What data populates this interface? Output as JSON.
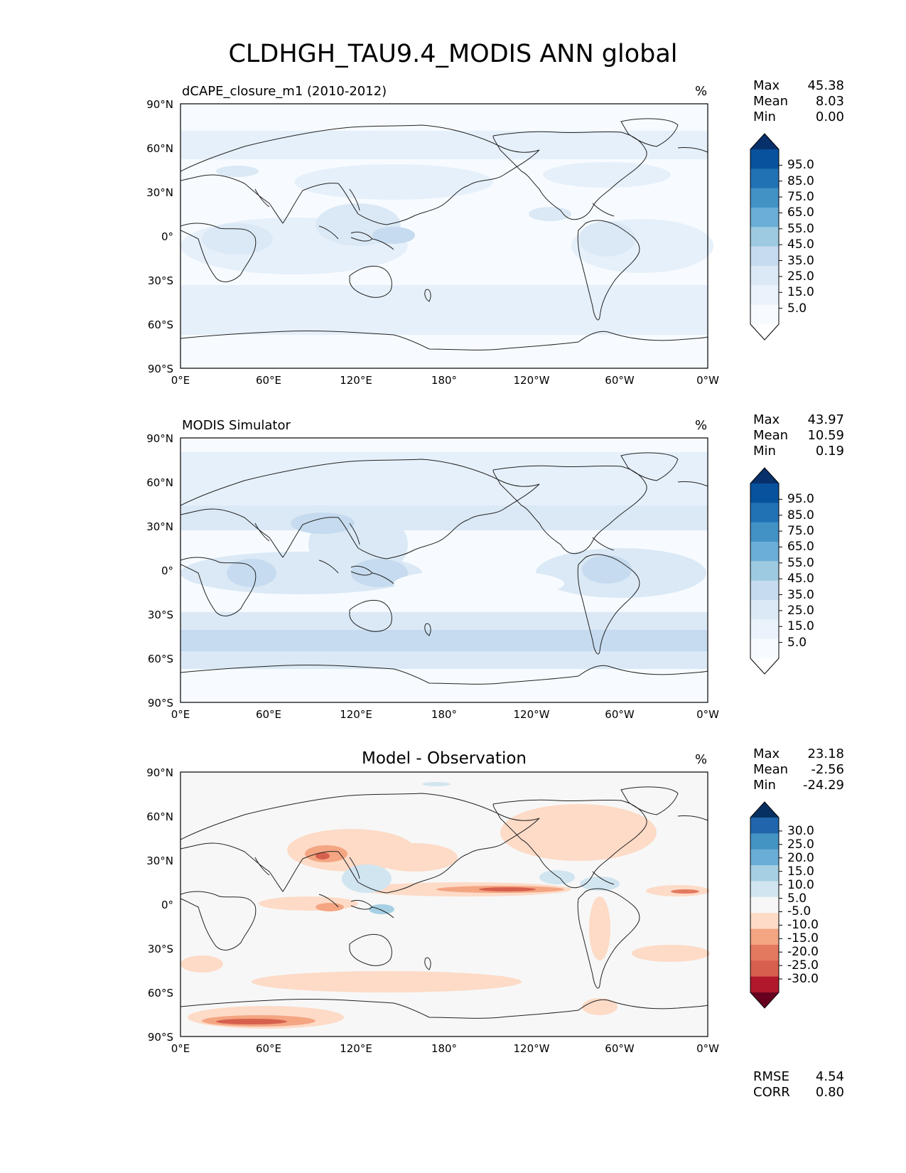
{
  "figure": {
    "title": "CLDHGH_TAU9.4_MODIS ANN global"
  },
  "axes": {
    "lat_labels": [
      "90°N",
      "60°N",
      "30°N",
      "0°",
      "30°S",
      "60°S",
      "90°S"
    ],
    "lon_labels": [
      "0°E",
      "60°E",
      "120°E",
      "180°",
      "120°W",
      "60°W",
      "0°W"
    ]
  },
  "panels": [
    {
      "title": "dCAPE_closure_m1 (2010-2012)",
      "units": "%",
      "stats": [
        {
          "label": "Max",
          "value": "45.38"
        },
        {
          "label": "Mean",
          "value": "8.03"
        },
        {
          "label": "Min",
          "value": "0.00"
        }
      ],
      "colorbar": {
        "ticks": [
          "95.0",
          "85.0",
          "75.0",
          "65.0",
          "55.0",
          "45.0",
          "35.0",
          "25.0",
          "15.0",
          "5.0"
        ],
        "colors": [
          "#08306b",
          "#08519c",
          "#2171b5",
          "#4292c6",
          "#6baed6",
          "#9ecae1",
          "#c6dbef",
          "#dbe9f6",
          "#eaf2fb",
          "#f7fbff",
          "#ffffff"
        ]
      }
    },
    {
      "title": "MODIS Simulator",
      "units": "%",
      "stats": [
        {
          "label": "Max",
          "value": "43.97"
        },
        {
          "label": "Mean",
          "value": "10.59"
        },
        {
          "label": "Min",
          "value": "0.19"
        }
      ],
      "colorbar": {
        "ticks": [
          "95.0",
          "85.0",
          "75.0",
          "65.0",
          "55.0",
          "45.0",
          "35.0",
          "25.0",
          "15.0",
          "5.0"
        ],
        "colors": [
          "#08306b",
          "#08519c",
          "#2171b5",
          "#4292c6",
          "#6baed6",
          "#9ecae1",
          "#c6dbef",
          "#dbe9f6",
          "#eaf2fb",
          "#f7fbff",
          "#ffffff"
        ]
      }
    },
    {
      "title": "Model - Observation",
      "units": "%",
      "stats": [
        {
          "label": "Max",
          "value": "23.18"
        },
        {
          "label": "Mean",
          "value": "-2.56"
        },
        {
          "label": "Min",
          "value": "-24.29"
        }
      ],
      "colorbar": {
        "ticks": [
          "30.0",
          "25.0",
          "20.0",
          "15.0",
          "10.0",
          "5.0",
          "-5.0",
          "-10.0",
          "-15.0",
          "-20.0",
          "-25.0",
          "-30.0"
        ],
        "colors": [
          "#053061",
          "#2166ac",
          "#4393c3",
          "#6aaed6",
          "#a6cfe4",
          "#d1e5f0",
          "#f7f7f7",
          "#fddbc7",
          "#f4a582",
          "#e3795f",
          "#d6604d",
          "#b2182b",
          "#67001f"
        ]
      },
      "metrics": [
        {
          "label": "RMSE",
          "value": "4.54"
        },
        {
          "label": "CORR",
          "value": "0.80"
        }
      ]
    }
  ]
}
